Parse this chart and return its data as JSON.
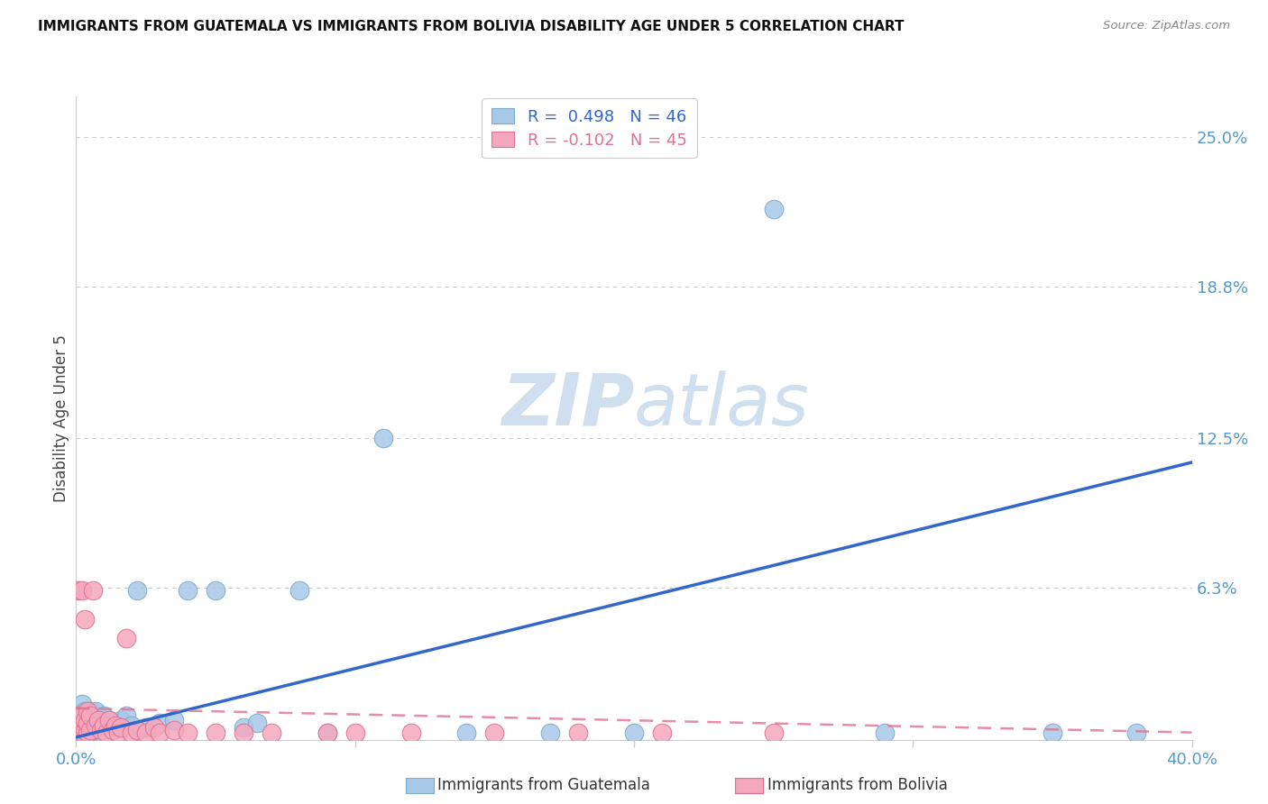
{
  "title": "IMMIGRANTS FROM GUATEMALA VS IMMIGRANTS FROM BOLIVIA DISABILITY AGE UNDER 5 CORRELATION CHART",
  "source": "Source: ZipAtlas.com",
  "ylabel": "Disability Age Under 5",
  "color_guatemala": "#a8c8e8",
  "color_bolivia": "#f4a8be",
  "color_guatemala_edge": "#7aaac8",
  "color_bolivia_edge": "#e07090",
  "trendline_color_guatemala": "#3366cc",
  "trendline_color_bolivia": "#e07090",
  "watermark_color": "#d0dff0",
  "xlim": [
    0.0,
    0.4
  ],
  "ylim": [
    0.0,
    0.2667
  ],
  "ytick_values": [
    0.0,
    0.063,
    0.125,
    0.188,
    0.25
  ],
  "ytick_labels": [
    "",
    "6.3%",
    "12.5%",
    "18.8%",
    "25.0%"
  ],
  "grid_color": "#cccccc",
  "spine_color": "#cccccc",
  "tick_label_color": "#5599cc",
  "guatemala_x": [
    0.001,
    0.001,
    0.001,
    0.002,
    0.002,
    0.002,
    0.002,
    0.003,
    0.003,
    0.003,
    0.004,
    0.004,
    0.005,
    0.005,
    0.005,
    0.006,
    0.006,
    0.007,
    0.007,
    0.008,
    0.009,
    0.01,
    0.011,
    0.012,
    0.014,
    0.016,
    0.018,
    0.02,
    0.022,
    0.025,
    0.03,
    0.035,
    0.04,
    0.05,
    0.06,
    0.065,
    0.08,
    0.09,
    0.11,
    0.14,
    0.17,
    0.2,
    0.25,
    0.29,
    0.35,
    0.38
  ],
  "guatemala_y": [
    0.004,
    0.006,
    0.01,
    0.003,
    0.006,
    0.01,
    0.015,
    0.004,
    0.008,
    0.012,
    0.005,
    0.01,
    0.003,
    0.007,
    0.012,
    0.004,
    0.009,
    0.005,
    0.012,
    0.006,
    0.008,
    0.01,
    0.006,
    0.008,
    0.005,
    0.008,
    0.01,
    0.006,
    0.062,
    0.005,
    0.007,
    0.008,
    0.062,
    0.062,
    0.005,
    0.007,
    0.062,
    0.003,
    0.125,
    0.003,
    0.003,
    0.003,
    0.22,
    0.003,
    0.003,
    0.003
  ],
  "bolivia_x": [
    0.001,
    0.001,
    0.001,
    0.001,
    0.002,
    0.002,
    0.002,
    0.002,
    0.003,
    0.003,
    0.003,
    0.004,
    0.004,
    0.004,
    0.005,
    0.005,
    0.006,
    0.007,
    0.008,
    0.009,
    0.01,
    0.011,
    0.012,
    0.013,
    0.014,
    0.015,
    0.016,
    0.018,
    0.02,
    0.022,
    0.025,
    0.028,
    0.03,
    0.035,
    0.04,
    0.05,
    0.06,
    0.07,
    0.09,
    0.1,
    0.12,
    0.15,
    0.18,
    0.21,
    0.25
  ],
  "bolivia_y": [
    0.004,
    0.006,
    0.01,
    0.062,
    0.003,
    0.006,
    0.01,
    0.062,
    0.004,
    0.008,
    0.05,
    0.003,
    0.007,
    0.012,
    0.004,
    0.01,
    0.062,
    0.006,
    0.008,
    0.004,
    0.006,
    0.003,
    0.008,
    0.004,
    0.006,
    0.003,
    0.005,
    0.042,
    0.003,
    0.004,
    0.003,
    0.005,
    0.003,
    0.004,
    0.003,
    0.003,
    0.003,
    0.003,
    0.003,
    0.003,
    0.003,
    0.003,
    0.003,
    0.003,
    0.003
  ],
  "guat_trend_x0": 0.0,
  "guat_trend_y0": 0.001,
  "guat_trend_x1": 0.4,
  "guat_trend_y1": 0.115,
  "boli_trend_x0": 0.0,
  "boli_trend_y0": 0.013,
  "boli_trend_x1": 0.4,
  "boli_trend_y1": 0.003,
  "legend_text_1": "R =  0.498   N = 46",
  "legend_text_2": "R = -0.102   N = 45",
  "bottom_label_1": "Immigrants from Guatemala",
  "bottom_label_2": "Immigrants from Bolivia"
}
